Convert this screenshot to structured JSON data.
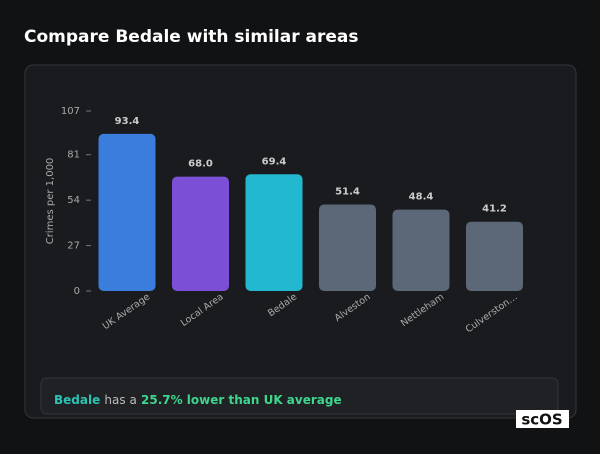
{
  "chart_data": {
    "type": "bar",
    "title": "Compare Bedale with similar areas",
    "y_label": "Crimes per 1,000",
    "categories": [
      "UK Average",
      "Local Area",
      "Bedale",
      "Alveston",
      "Nettleham",
      "Culverston…"
    ],
    "values": [
      93.4,
      68.0,
      69.4,
      51.4,
      48.4,
      41.2
    ],
    "value_labels": [
      "93.4",
      "68.0",
      "69.4",
      "51.4",
      "48.4",
      "41.2"
    ],
    "colors": [
      "#3b7ddd",
      "#7b4fd6",
      "#22b8cf",
      "#5c6778",
      "#5c6778",
      "#5c6778"
    ],
    "ylim": [
      0,
      107
    ],
    "yticks": [
      0,
      27,
      54,
      81,
      107
    ],
    "grid": false
  },
  "summary": {
    "area": "Bedale",
    "text": "has a",
    "highlight": "25.7% lower than UK average"
  },
  "logo": "scOS"
}
